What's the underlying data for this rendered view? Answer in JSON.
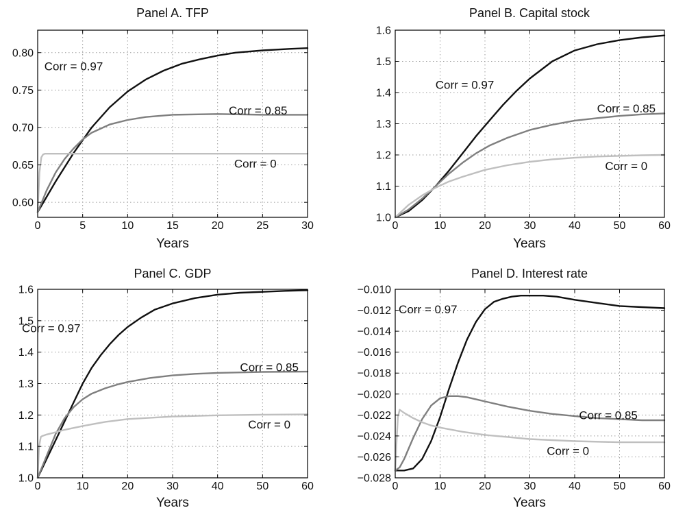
{
  "chart_data": [
    {
      "type": "line",
      "title": "Panel A. TFP",
      "xlabel": "Years",
      "ylabel": "",
      "xlim": [
        0,
        30
      ],
      "ylim": [
        0.58,
        0.83
      ],
      "xticks": [
        0,
        5,
        10,
        15,
        20,
        25,
        30
      ],
      "yticks": [
        0.6,
        0.65,
        0.7,
        0.75,
        0.8
      ],
      "ytick_labels": [
        "0.60",
        "0.65",
        "0.70",
        "0.75",
        "0.80"
      ],
      "grid": true,
      "series": [
        {
          "name": "Corr = 0.97",
          "color": "#111111",
          "x": [
            0,
            2,
            4,
            6,
            8,
            10,
            12,
            14,
            16,
            18,
            20,
            22,
            25,
            28,
            30
          ],
          "y": [
            0.587,
            0.628,
            0.666,
            0.7,
            0.727,
            0.748,
            0.764,
            0.776,
            0.785,
            0.791,
            0.796,
            0.8,
            0.803,
            0.805,
            0.806
          ]
        },
        {
          "name": "Corr = 0.85",
          "color": "#7f7f7f",
          "x": [
            0,
            1,
            2,
            3,
            4,
            5,
            6,
            8,
            10,
            12,
            15,
            20,
            25,
            30
          ],
          "y": [
            0.587,
            0.616,
            0.64,
            0.658,
            0.672,
            0.684,
            0.693,
            0.704,
            0.71,
            0.714,
            0.717,
            0.718,
            0.717,
            0.717
          ]
        },
        {
          "name": "Corr = 0",
          "color": "#bfbfbf",
          "x": [
            0,
            0.2,
            0.4,
            0.6,
            0.8,
            1,
            2,
            5,
            10,
            20,
            30
          ],
          "y": [
            0.587,
            0.64,
            0.66,
            0.664,
            0.665,
            0.665,
            0.665,
            0.665,
            0.665,
            0.665,
            0.665
          ]
        }
      ],
      "annotations": [
        {
          "text": "Corr = 0.97",
          "x": 4.0,
          "y": 0.782
        },
        {
          "text": "Corr = 0.85",
          "x": 24.5,
          "y": 0.723
        },
        {
          "text": "Corr = 0",
          "x": 24.2,
          "y": 0.652
        }
      ]
    },
    {
      "type": "line",
      "title": "Panel B. Capital stock",
      "xlabel": "Years",
      "ylabel": "",
      "xlim": [
        0,
        60
      ],
      "ylim": [
        1.0,
        1.6
      ],
      "xticks": [
        0,
        10,
        20,
        30,
        40,
        50,
        60
      ],
      "yticks": [
        1.0,
        1.1,
        1.2,
        1.3,
        1.4,
        1.5,
        1.6
      ],
      "ytick_labels": [
        "1.0",
        "1.1",
        "1.2",
        "1.3",
        "1.4",
        "1.5",
        "1.6"
      ],
      "grid": true,
      "series": [
        {
          "name": "Corr = 0.97",
          "color": "#111111",
          "x": [
            0,
            3,
            6,
            9,
            12,
            15,
            18,
            21,
            24,
            27,
            30,
            35,
            40,
            45,
            50,
            55,
            60
          ],
          "y": [
            1.0,
            1.02,
            1.055,
            1.1,
            1.15,
            1.205,
            1.26,
            1.31,
            1.36,
            1.405,
            1.445,
            1.5,
            1.535,
            1.555,
            1.568,
            1.577,
            1.583
          ]
        },
        {
          "name": "Corr = 0.85",
          "color": "#7f7f7f",
          "x": [
            0,
            3,
            6,
            9,
            12,
            15,
            18,
            21,
            25,
            30,
            35,
            40,
            45,
            50,
            55,
            60
          ],
          "y": [
            1.0,
            1.025,
            1.06,
            1.1,
            1.14,
            1.175,
            1.205,
            1.23,
            1.255,
            1.28,
            1.297,
            1.31,
            1.318,
            1.325,
            1.33,
            1.333
          ]
        },
        {
          "name": "Corr = 0",
          "color": "#bfbfbf",
          "x": [
            0,
            3,
            6,
            9,
            12,
            15,
            20,
            25,
            30,
            35,
            40,
            45,
            50,
            55,
            60
          ],
          "y": [
            1.0,
            1.04,
            1.07,
            1.095,
            1.115,
            1.13,
            1.152,
            1.167,
            1.178,
            1.186,
            1.191,
            1.195,
            1.197,
            1.199,
            1.2
          ]
        }
      ],
      "annotations": [
        {
          "text": "Corr = 0.97",
          "x": 15.5,
          "y": 1.425
        },
        {
          "text": "Corr = 0.85",
          "x": 51.5,
          "y": 1.35
        },
        {
          "text": "Corr = 0",
          "x": 51.5,
          "y": 1.165
        }
      ]
    },
    {
      "type": "line",
      "title": "Panel C. GDP",
      "xlabel": "Years",
      "ylabel": "",
      "xlim": [
        0,
        60
      ],
      "ylim": [
        1.0,
        1.6
      ],
      "xticks": [
        0,
        10,
        20,
        30,
        40,
        50,
        60
      ],
      "yticks": [
        1.0,
        1.1,
        1.2,
        1.3,
        1.4,
        1.5,
        1.6
      ],
      "ytick_labels": [
        "1.0",
        "1.1",
        "1.2",
        "1.3",
        "1.4",
        "1.5",
        "1.6"
      ],
      "grid": true,
      "series": [
        {
          "name": "Corr = 0.97",
          "color": "#111111",
          "x": [
            0,
            2,
            4,
            6,
            8,
            10,
            12,
            14,
            16,
            18,
            20,
            23,
            26,
            30,
            35,
            40,
            45,
            50,
            55,
            60
          ],
          "y": [
            1.0,
            1.06,
            1.12,
            1.18,
            1.24,
            1.3,
            1.35,
            1.39,
            1.425,
            1.455,
            1.48,
            1.51,
            1.535,
            1.555,
            1.572,
            1.583,
            1.589,
            1.592,
            1.595,
            1.597
          ]
        },
        {
          "name": "Corr = 0.85",
          "color": "#7f7f7f",
          "x": [
            0,
            2,
            4,
            6,
            8,
            10,
            12,
            15,
            18,
            20,
            25,
            30,
            35,
            40,
            50,
            60
          ],
          "y": [
            1.0,
            1.07,
            1.14,
            1.19,
            1.225,
            1.25,
            1.268,
            1.285,
            1.298,
            1.305,
            1.318,
            1.326,
            1.331,
            1.334,
            1.337,
            1.338
          ]
        },
        {
          "name": "Corr = 0",
          "color": "#bfbfbf",
          "x": [
            0,
            0.3,
            0.7,
            1,
            2,
            4,
            6,
            10,
            15,
            20,
            30,
            40,
            50,
            60
          ],
          "y": [
            1.0,
            1.1,
            1.13,
            1.133,
            1.138,
            1.145,
            1.153,
            1.165,
            1.178,
            1.187,
            1.195,
            1.199,
            1.201,
            1.202
          ]
        }
      ],
      "annotations": [
        {
          "text": "Corr = 0.97",
          "x": 3.0,
          "y": 1.477
        },
        {
          "text": "Corr = 0.85",
          "x": 51.5,
          "y": 1.352
        },
        {
          "text": "Corr = 0",
          "x": 51.5,
          "y": 1.17
        }
      ]
    },
    {
      "type": "line",
      "title": "Panel D. Interest rate",
      "xlabel": "Years",
      "ylabel": "",
      "xlim": [
        0,
        60
      ],
      "ylim": [
        -0.028,
        -0.01
      ],
      "xticks": [
        0,
        10,
        20,
        30,
        40,
        50,
        60
      ],
      "yticks": [
        -0.028,
        -0.026,
        -0.024,
        -0.022,
        -0.02,
        -0.018,
        -0.016,
        -0.014,
        -0.012,
        -0.01
      ],
      "ytick_labels": [
        "−0.028",
        "−0.026",
        "−0.024",
        "−0.022",
        "−0.020",
        "−0.018",
        "−0.016",
        "−0.014",
        "−0.012",
        "−0.010"
      ],
      "grid": true,
      "series": [
        {
          "name": "Corr = 0.97",
          "color": "#111111",
          "x": [
            0,
            2,
            4,
            6,
            8,
            10,
            12,
            14,
            16,
            18,
            20,
            22,
            24,
            26,
            28,
            30,
            33,
            36,
            40,
            45,
            50,
            55,
            60
          ],
          "y": [
            -0.0273,
            -0.0273,
            -0.0271,
            -0.0262,
            -0.0245,
            -0.0222,
            -0.0195,
            -0.017,
            -0.0148,
            -0.0131,
            -0.0119,
            -0.0112,
            -0.0109,
            -0.0107,
            -0.0106,
            -0.0106,
            -0.0106,
            -0.0107,
            -0.011,
            -0.0113,
            -0.0116,
            -0.0117,
            -0.0118
          ]
        },
        {
          "name": "Corr = 0.85",
          "color": "#7f7f7f",
          "x": [
            0,
            1,
            2,
            4,
            6,
            8,
            10,
            12,
            13,
            14,
            16,
            18,
            20,
            25,
            30,
            35,
            40,
            45,
            50,
            55,
            60
          ],
          "y": [
            -0.0273,
            -0.027,
            -0.0262,
            -0.0242,
            -0.0224,
            -0.0211,
            -0.0204,
            -0.0202,
            -0.0202,
            -0.0202,
            -0.0203,
            -0.0205,
            -0.0207,
            -0.0212,
            -0.0216,
            -0.0219,
            -0.0221,
            -0.0223,
            -0.0224,
            -0.0225,
            -0.0225
          ]
        },
        {
          "name": "Corr = 0",
          "color": "#bfbfbf",
          "x": [
            0,
            0.3,
            0.6,
            1,
            2,
            4,
            6,
            8,
            10,
            15,
            20,
            25,
            30,
            35,
            40,
            50,
            60
          ],
          "y": [
            -0.0273,
            -0.0245,
            -0.0222,
            -0.0215,
            -0.0218,
            -0.0223,
            -0.0227,
            -0.023,
            -0.0232,
            -0.0236,
            -0.0239,
            -0.0241,
            -0.0243,
            -0.0244,
            -0.0245,
            -0.0246,
            -0.0246
          ]
        }
      ],
      "annotations": [
        {
          "text": "Corr = 0.97",
          "x": 7.3,
          "y": -0.0119
        },
        {
          "text": "Corr = 0.85",
          "x": 47.5,
          "y": -0.022
        },
        {
          "text": "Corr = 0",
          "x": 38.5,
          "y": -0.0254
        }
      ]
    }
  ]
}
